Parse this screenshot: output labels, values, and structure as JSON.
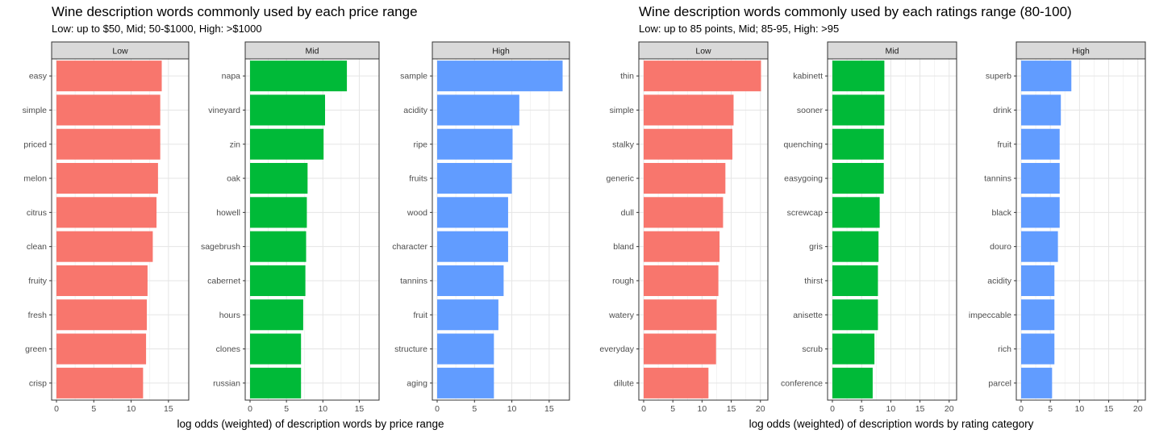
{
  "chart_data": [
    {
      "type": "bar",
      "orientation": "horizontal",
      "title": "Wine description words commonly used by each price range",
      "subtitle": "Low: up to $50, Mid; 50-$1000, High: >$1000",
      "xlabel": "log odds (weighted) of description words by price range",
      "panels": [
        {
          "name": "Low",
          "color": "#F8766D",
          "xlim": [
            0,
            17.5
          ],
          "xticks": [
            0,
            5,
            10,
            15
          ],
          "categories": [
            "easy",
            "simple",
            "priced",
            "melon",
            "citrus",
            "clean",
            "fruity",
            "fresh",
            "green",
            "crisp"
          ],
          "values": [
            14.1,
            13.9,
            13.9,
            13.6,
            13.4,
            12.9,
            12.2,
            12.1,
            12.0,
            11.6
          ]
        },
        {
          "name": "Mid",
          "color": "#00BA38",
          "xlim": [
            0,
            17.5
          ],
          "xticks": [
            0,
            5,
            10,
            15
          ],
          "categories": [
            "napa",
            "vineyard",
            "zin",
            "oak",
            "howell",
            "sagebrush",
            "cabernet",
            "hours",
            "clones",
            "russian"
          ],
          "values": [
            13.3,
            10.3,
            10.1,
            7.9,
            7.8,
            7.7,
            7.6,
            7.3,
            7.0,
            7.0
          ]
        },
        {
          "name": "High",
          "color": "#619CFF",
          "xlim": [
            0,
            17.5
          ],
          "xticks": [
            0,
            5,
            10,
            15
          ],
          "categories": [
            "sample",
            "acidity",
            "ripe",
            "fruits",
            "wood",
            "character",
            "tannins",
            "fruit",
            "structure",
            "aging"
          ],
          "values": [
            16.8,
            11.0,
            10.1,
            10.0,
            9.5,
            9.5,
            8.9,
            8.2,
            7.6,
            7.6
          ]
        }
      ]
    },
    {
      "type": "bar",
      "orientation": "horizontal",
      "title": "Wine description words commonly used by each ratings range (80-100)",
      "subtitle": "Low: up to 85 points, Mid; 85-95, High: >95",
      "xlabel": "log odds (weighted) of description words by rating category",
      "panels": [
        {
          "name": "Low",
          "color": "#F8766D",
          "xlim": [
            0,
            21
          ],
          "xticks": [
            0,
            5,
            10,
            15,
            20
          ],
          "categories": [
            "thin",
            "simple",
            "stalky",
            "generic",
            "dull",
            "bland",
            "rough",
            "watery",
            "everyday",
            "dilute"
          ],
          "values": [
            20.1,
            15.4,
            15.2,
            14.0,
            13.6,
            13.0,
            12.8,
            12.5,
            12.4,
            11.1
          ]
        },
        {
          "name": "Mid",
          "color": "#00BA38",
          "xlim": [
            0,
            21
          ],
          "xticks": [
            0,
            5,
            10,
            15,
            20
          ],
          "categories": [
            "kabinett",
            "sooner",
            "quenching",
            "easygoing",
            "screwcap",
            "gris",
            "thirst",
            "anisette",
            "scrub",
            "conference"
          ],
          "values": [
            8.9,
            8.9,
            8.8,
            8.8,
            8.1,
            7.9,
            7.8,
            7.8,
            7.2,
            6.9
          ]
        },
        {
          "name": "High",
          "color": "#619CFF",
          "xlim": [
            0,
            21
          ],
          "xticks": [
            0,
            5,
            10,
            15,
            20
          ],
          "categories": [
            "superb",
            "drink",
            "fruit",
            "tannins",
            "black",
            "douro",
            "acidity",
            "impeccable",
            "rich",
            "parcel"
          ],
          "values": [
            8.6,
            6.8,
            6.6,
            6.6,
            6.6,
            6.3,
            5.7,
            5.7,
            5.7,
            5.3
          ]
        }
      ]
    }
  ]
}
